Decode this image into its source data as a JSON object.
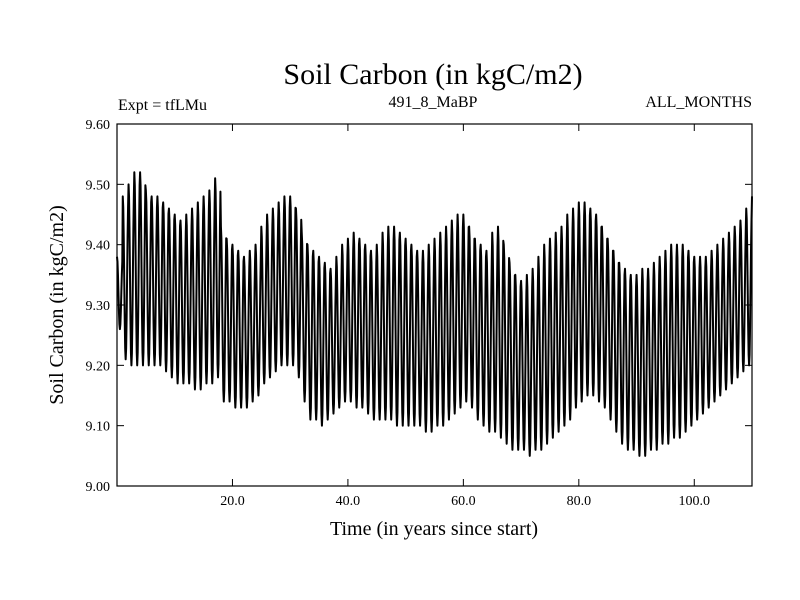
{
  "chart_data": {
    "type": "line",
    "title": "Soil Carbon (in kgC/m2)",
    "subtitle_left": "Expt = tfLMu",
    "subtitle_center": "491_8_MaBP",
    "subtitle_right": "ALL_MONTHS",
    "xlabel": "Time (in years since start)",
    "ylabel": "Soil Carbon (in kgC/m2)",
    "xlim": [
      0,
      110
    ],
    "ylim": [
      9.0,
      9.6
    ],
    "x_ticks": [
      20,
      40,
      60,
      80,
      100
    ],
    "x_tick_labels": [
      "20.0",
      "40.0",
      "60.0",
      "80.0",
      "100.0"
    ],
    "y_ticks": [
      9.0,
      9.1,
      9.2,
      9.3,
      9.4,
      9.5,
      9.6
    ],
    "y_tick_labels": [
      "9.00",
      "9.10",
      "9.20",
      "9.30",
      "9.40",
      "9.50",
      "9.60"
    ],
    "grid": false,
    "series": [
      {
        "sampling": "monthly, one annual cycle per year",
        "annual_max": [
          9.38,
          9.48,
          9.5,
          9.52,
          9.52,
          9.49,
          9.48,
          9.48,
          9.47,
          9.46,
          9.45,
          9.44,
          9.45,
          9.46,
          9.47,
          9.48,
          9.49,
          9.51,
          9.43,
          9.41,
          9.4,
          9.39,
          9.38,
          9.39,
          9.4,
          9.43,
          9.45,
          9.46,
          9.47,
          9.48,
          9.48,
          9.46,
          9.42,
          9.4,
          9.39,
          9.38,
          9.37,
          9.36,
          9.38,
          9.4,
          9.41,
          9.42,
          9.41,
          9.4,
          9.39,
          9.4,
          9.42,
          9.43,
          9.43,
          9.42,
          9.41,
          9.4,
          9.39,
          9.39,
          9.4,
          9.41,
          9.42,
          9.43,
          9.44,
          9.45,
          9.45,
          9.43,
          9.41,
          9.4,
          9.39,
          9.42,
          9.43,
          9.4,
          9.37,
          9.35,
          9.34,
          9.35,
          9.36,
          9.38,
          9.4,
          9.41,
          9.42,
          9.43,
          9.45,
          9.46,
          9.47,
          9.47,
          9.46,
          9.45,
          9.43,
          9.41,
          9.39,
          9.37,
          9.36,
          9.35,
          9.35,
          9.36,
          9.36,
          9.37,
          9.38,
          9.39,
          9.4,
          9.4,
          9.4,
          9.39,
          9.38,
          9.38,
          9.38,
          9.39,
          9.4,
          9.41,
          9.42,
          9.43,
          9.44,
          9.46,
          9.48
        ],
        "annual_min": [
          9.26,
          9.21,
          9.2,
          9.2,
          9.2,
          9.2,
          9.2,
          9.2,
          9.19,
          9.18,
          9.17,
          9.17,
          9.17,
          9.16,
          9.16,
          9.17,
          9.17,
          9.18,
          9.14,
          9.14,
          9.13,
          9.13,
          9.13,
          9.14,
          9.15,
          9.17,
          9.18,
          9.19,
          9.2,
          9.2,
          9.2,
          9.18,
          9.14,
          9.11,
          9.11,
          9.1,
          9.11,
          9.12,
          9.13,
          9.14,
          9.14,
          9.13,
          9.13,
          9.12,
          9.11,
          9.11,
          9.11,
          9.11,
          9.1,
          9.1,
          9.1,
          9.1,
          9.1,
          9.09,
          9.09,
          9.1,
          9.1,
          9.11,
          9.12,
          9.13,
          9.14,
          9.13,
          9.11,
          9.1,
          9.09,
          9.09,
          9.08,
          9.07,
          9.06,
          9.06,
          9.06,
          9.05,
          9.06,
          9.06,
          9.07,
          9.08,
          9.09,
          9.1,
          9.11,
          9.13,
          9.14,
          9.15,
          9.15,
          9.14,
          9.13,
          9.11,
          9.09,
          9.07,
          9.06,
          9.06,
          9.05,
          9.05,
          9.06,
          9.06,
          9.07,
          9.07,
          9.08,
          9.08,
          9.09,
          9.1,
          9.11,
          9.12,
          9.13,
          9.14,
          9.15,
          9.16,
          9.17,
          9.18,
          9.19,
          9.2,
          9.21
        ]
      }
    ]
  }
}
